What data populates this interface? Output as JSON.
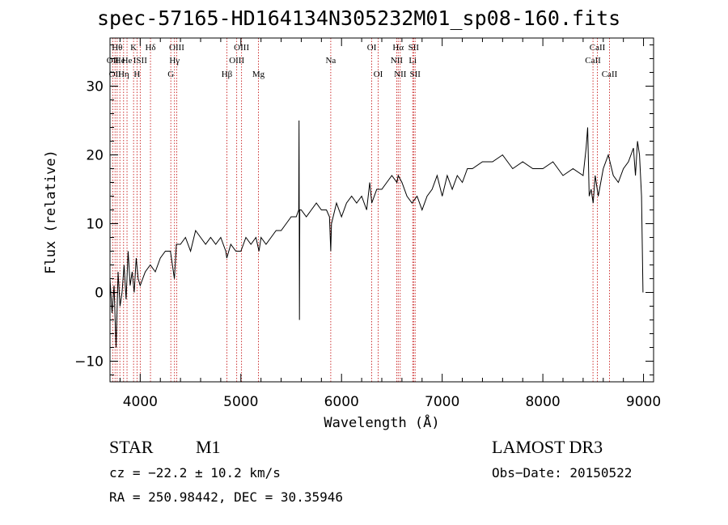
{
  "chart_data": {
    "type": "line",
    "title": "spec-57165-HD164134N305232M01_sp08-160.fits",
    "xlabel": "Wavelength (Å)",
    "ylabel": "Flux (relative)",
    "xlim": [
      3700,
      9100
    ],
    "ylim": [
      -13,
      37
    ],
    "x_ticks": [
      4000,
      5000,
      6000,
      7000,
      8000,
      9000
    ],
    "x_tick_labels": [
      "4000",
      "5000",
      "6000",
      "7000",
      "8000",
      "9000"
    ],
    "y_ticks": [
      -10,
      0,
      10,
      20,
      30
    ],
    "y_tick_labels": [
      "−10",
      "0",
      "10",
      "20",
      "30"
    ],
    "series": [
      {
        "name": "flux",
        "x": [
          3700,
          3720,
          3740,
          3760,
          3780,
          3800,
          3820,
          3840,
          3860,
          3880,
          3900,
          3920,
          3940,
          3960,
          3980,
          4000,
          4050,
          4100,
          4150,
          4200,
          4250,
          4300,
          4340,
          4360,
          4400,
          4450,
          4500,
          4550,
          4600,
          4650,
          4700,
          4750,
          4800,
          4850,
          4860,
          4900,
          4950,
          5000,
          5050,
          5100,
          5150,
          5180,
          5200,
          5250,
          5300,
          5350,
          5400,
          5450,
          5500,
          5550,
          5575,
          5578,
          5582,
          5585,
          5600,
          5650,
          5700,
          5750,
          5800,
          5850,
          5880,
          5893,
          5900,
          5950,
          6000,
          6050,
          6100,
          6150,
          6200,
          6250,
          6280,
          6300,
          6350,
          6400,
          6450,
          6500,
          6550,
          6563,
          6600,
          6650,
          6700,
          6750,
          6800,
          6850,
          6900,
          6950,
          7000,
          7050,
          7100,
          7150,
          7200,
          7250,
          7300,
          7400,
          7500,
          7600,
          7700,
          7800,
          7900,
          8000,
          8100,
          8200,
          8300,
          8400,
          8430,
          8445,
          8460,
          8480,
          8500,
          8520,
          8550,
          8600,
          8650,
          8700,
          8750,
          8800,
          8850,
          8900,
          8920,
          8940,
          8960,
          8980,
          8995
        ],
        "y": [
          2,
          -3,
          1,
          -8,
          3,
          -2,
          0,
          4,
          -1,
          6,
          1,
          3,
          0,
          5,
          2,
          1,
          3,
          4,
          3,
          5,
          6,
          6,
          2,
          7,
          7,
          8,
          6,
          9,
          8,
          7,
          8,
          7,
          8,
          6,
          5,
          7,
          6,
          6,
          8,
          7,
          8,
          6,
          8,
          7,
          8,
          9,
          9,
          10,
          11,
          11,
          12,
          25,
          -4,
          12,
          12,
          11,
          12,
          13,
          12,
          12,
          11,
          6,
          10,
          13,
          11,
          13,
          14,
          13,
          14,
          12,
          16,
          13,
          15,
          15,
          16,
          17,
          16,
          17,
          16,
          14,
          13,
          14,
          12,
          14,
          15,
          17,
          14,
          17,
          15,
          17,
          16,
          18,
          18,
          19,
          19,
          20,
          18,
          19,
          18,
          18,
          19,
          17,
          18,
          17,
          21,
          24,
          14,
          15,
          13,
          17,
          14,
          18,
          20,
          17,
          16,
          18,
          19,
          21,
          17,
          22,
          20,
          14,
          0
        ]
      }
    ],
    "line_marks": [
      {
        "x": 3727,
        "row": 2,
        "label": "OII"
      },
      {
        "x": 3750,
        "row": 3,
        "label": "OII"
      },
      {
        "x": 3771,
        "row": 1,
        "label": "Hθ"
      },
      {
        "x": 3798,
        "row": 2,
        "label": "He"
      },
      {
        "x": 3835,
        "row": 3,
        "label": "Hη"
      },
      {
        "x": 3869,
        "row": 2,
        "label": "He"
      },
      {
        "x": 3934,
        "row": 1,
        "label": "K"
      },
      {
        "x": 3968,
        "row": 3,
        "label": "H"
      },
      {
        "x": 4000,
        "row": 2,
        "label": "ISII"
      },
      {
        "x": 4102,
        "row": 1,
        "label": "Hδ"
      },
      {
        "x": 4304,
        "row": 3,
        "label": "G"
      },
      {
        "x": 4341,
        "row": 2,
        "label": "Hγ"
      },
      {
        "x": 4363,
        "row": 1,
        "label": "OIII"
      },
      {
        "x": 4861,
        "row": 3,
        "label": "Hβ"
      },
      {
        "x": 4959,
        "row": 2,
        "label": "OIII"
      },
      {
        "x": 5007,
        "row": 1,
        "label": "OIII"
      },
      {
        "x": 5175,
        "row": 3,
        "label": "Mg"
      },
      {
        "x": 5893,
        "row": 2,
        "label": "Na"
      },
      {
        "x": 6300,
        "row": 1,
        "label": "OI"
      },
      {
        "x": 6364,
        "row": 3,
        "label": "OI"
      },
      {
        "x": 6548,
        "row": 2,
        "label": "NII"
      },
      {
        "x": 6563,
        "row": 1,
        "label": "Hα"
      },
      {
        "x": 6583,
        "row": 3,
        "label": "NII"
      },
      {
        "x": 6707,
        "row": 2,
        "label": "Li"
      },
      {
        "x": 6716,
        "row": 1,
        "label": "SII"
      },
      {
        "x": 6731,
        "row": 3,
        "label": "SII"
      },
      {
        "x": 8498,
        "row": 2,
        "label": "CaII"
      },
      {
        "x": 8542,
        "row": 1,
        "label": "CaII"
      },
      {
        "x": 8662,
        "row": 3,
        "label": "CaII"
      }
    ]
  },
  "info": {
    "class": "STAR",
    "subclass": "M1",
    "survey": "LAMOST DR3",
    "cz": "cz = −22.2 ± 10.2 km/s",
    "obs_date": "Obs−Date: 20150522",
    "coords": "RA = 250.98442, DEC =  30.35946"
  },
  "colors": {
    "spectrum": "#000000",
    "line_marker": "#c00000",
    "axis": "#000000",
    "background": "#ffffff"
  }
}
